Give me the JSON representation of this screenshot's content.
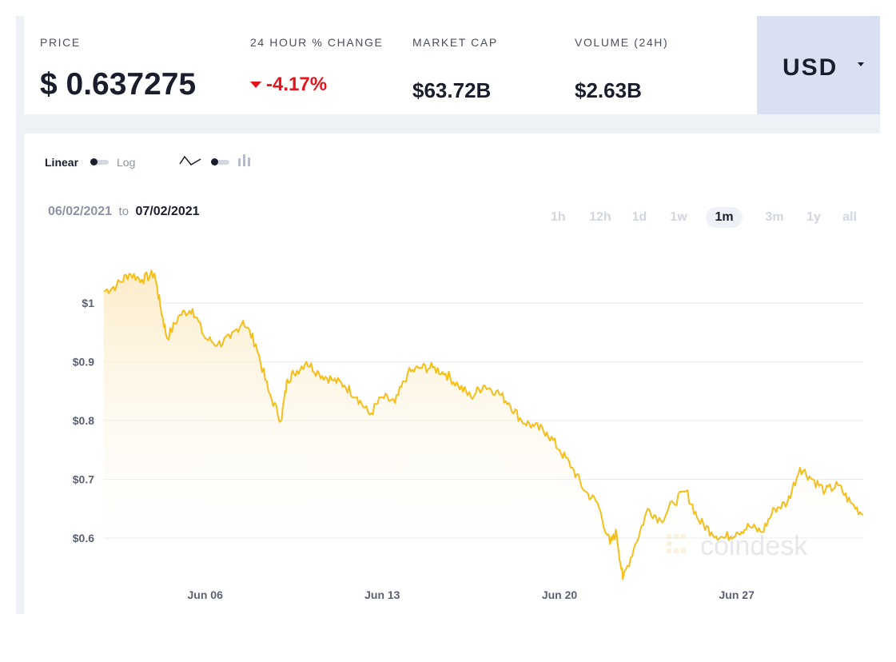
{
  "stats": {
    "price_label": "PRICE",
    "price_value": "$ 0.637275",
    "change_label": "24 HOUR % CHANGE",
    "change_value": "-4.17%",
    "marketcap_label": "MARKET CAP",
    "marketcap_value": "$63.72B",
    "volume_label": "VOLUME (24H)",
    "volume_value": "$2.63B"
  },
  "currency": {
    "selected": "USD"
  },
  "controls": {
    "scale_linear": "Linear",
    "scale_log": "Log",
    "date_from": "06/02/2021",
    "date_to_word": "to",
    "date_to": "07/02/2021",
    "ranges": [
      "1h",
      "12h",
      "1d",
      "1w",
      "1m",
      "3m",
      "1y",
      "all"
    ],
    "active_range": "1m"
  },
  "watermark": "coindesk",
  "colors": {
    "line": "#f5be1a",
    "negative": "#e8131b",
    "currency_bg": "#d9e0f1"
  },
  "chart_data": {
    "type": "area",
    "title": "",
    "xlabel": "",
    "ylabel": "",
    "x_ticks": [
      "Jun 06",
      "Jun 13",
      "Jun 20",
      "Jun 27"
    ],
    "y_ticks": [
      "$0.6",
      "$0.7",
      "$0.8",
      "$0.9",
      "$1"
    ],
    "ylim": [
      0.52,
      1.08
    ],
    "grid": true,
    "series": [
      {
        "x": [
          "2021-06-02T00:00",
          "2021-06-02T12:00",
          "2021-06-03T00:00",
          "2021-06-03T12:00",
          "2021-06-04T00:00",
          "2021-06-04T06:00",
          "2021-06-04T12:00",
          "2021-06-05T00:00",
          "2021-06-05T12:00",
          "2021-06-06T00:00",
          "2021-06-06T12:00",
          "2021-06-07T00:00",
          "2021-06-07T12:00",
          "2021-06-08T00:00",
          "2021-06-08T12:00",
          "2021-06-09T00:00",
          "2021-06-09T06:00",
          "2021-06-09T12:00",
          "2021-06-10T00:00",
          "2021-06-10T12:00",
          "2021-06-11T00:00",
          "2021-06-11T12:00",
          "2021-06-12T00:00",
          "2021-06-12T12:00",
          "2021-06-13T00:00",
          "2021-06-13T12:00",
          "2021-06-14T00:00",
          "2021-06-14T12:00",
          "2021-06-15T00:00",
          "2021-06-15T12:00",
          "2021-06-16T00:00",
          "2021-06-16T12:00",
          "2021-06-17T00:00",
          "2021-06-17T12:00",
          "2021-06-18T00:00",
          "2021-06-18T12:00",
          "2021-06-19T00:00",
          "2021-06-19T12:00",
          "2021-06-20T00:00",
          "2021-06-20T12:00",
          "2021-06-21T00:00",
          "2021-06-21T12:00",
          "2021-06-22T00:00",
          "2021-06-22T06:00",
          "2021-06-22T12:00",
          "2021-06-23T00:00",
          "2021-06-23T12:00",
          "2021-06-24T00:00",
          "2021-06-24T12:00",
          "2021-06-25T00:00",
          "2021-06-25T12:00",
          "2021-06-26T00:00",
          "2021-06-26T12:00",
          "2021-06-27T00:00",
          "2021-06-27T12:00",
          "2021-06-28T00:00",
          "2021-06-28T12:00",
          "2021-06-29T00:00",
          "2021-06-29T12:00",
          "2021-06-30T00:00",
          "2021-06-30T12:00",
          "2021-07-01T00:00",
          "2021-07-01T12:00",
          "2021-07-02T00:00"
        ],
        "values": [
          1.02,
          1.03,
          1.05,
          1.04,
          1.05,
          0.99,
          0.94,
          0.98,
          0.99,
          0.94,
          0.93,
          0.94,
          0.97,
          0.93,
          0.85,
          0.8,
          0.87,
          0.88,
          0.9,
          0.88,
          0.87,
          0.86,
          0.84,
          0.81,
          0.84,
          0.83,
          0.88,
          0.89,
          0.89,
          0.88,
          0.86,
          0.84,
          0.86,
          0.85,
          0.83,
          0.8,
          0.79,
          0.78,
          0.75,
          0.72,
          0.68,
          0.66,
          0.59,
          0.61,
          0.53,
          0.59,
          0.65,
          0.63,
          0.66,
          0.68,
          0.63,
          0.61,
          0.6,
          0.61,
          0.62,
          0.61,
          0.65,
          0.66,
          0.72,
          0.7,
          0.68,
          0.69,
          0.66,
          0.64
        ]
      }
    ]
  }
}
